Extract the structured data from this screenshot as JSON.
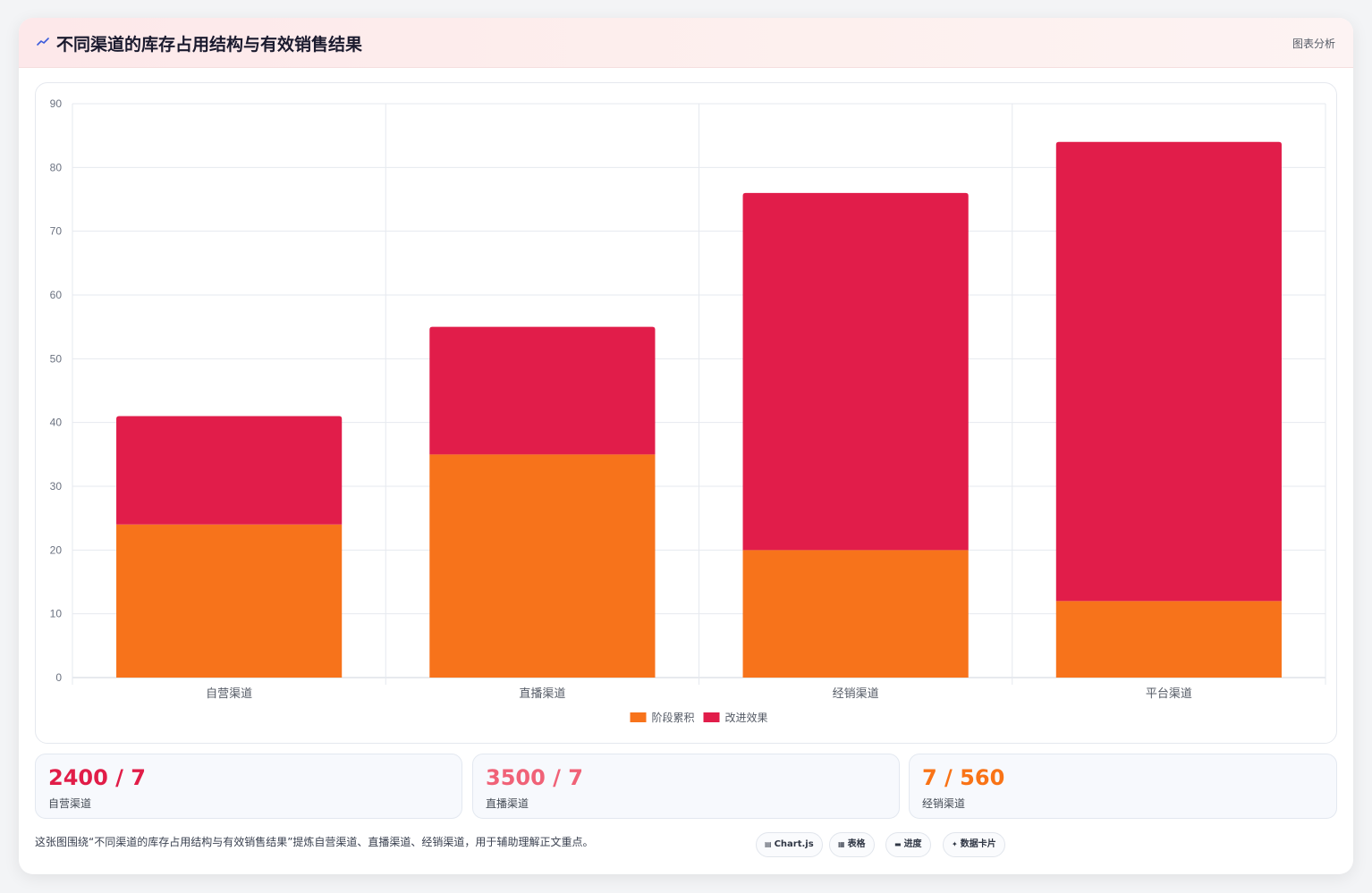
{
  "header": {
    "title": "不同渠道的库存占用结构与有效销售结果",
    "action_label": "图表分析"
  },
  "chart_data": {
    "type": "bar",
    "stacked": true,
    "categories": [
      "自营渠道",
      "直播渠道",
      "经销渠道",
      "平台渠道"
    ],
    "series": [
      {
        "name": "阶段累积",
        "values": [
          24,
          35,
          20,
          12
        ],
        "color": "#f7731b"
      },
      {
        "name": "改进效果",
        "values": [
          17,
          20,
          56,
          72
        ],
        "color": "#e11d4a"
      }
    ],
    "ylim": [
      0,
      90
    ],
    "yticks": [
      0,
      10,
      20,
      30,
      40,
      50,
      60,
      70,
      80,
      90
    ],
    "grid": true,
    "legend": "bottom"
  },
  "stats": [
    {
      "value": "2400 / 7",
      "label": "自营渠道",
      "color": "#e11d48"
    },
    {
      "value": "3500 / 7",
      "label": "直播渠道",
      "color": "#f06277"
    },
    {
      "value": "7 / 560",
      "label": "经销渠道",
      "color": "#f97316"
    }
  ],
  "footer": {
    "note": "这张图围绕“不同渠道的库存占用结构与有效销售结果”提炼自营渠道、直播渠道、经销渠道，用于辅助理解正文重点。",
    "chips": [
      {
        "icon": "chart-icon",
        "glyph": "▤",
        "label": "Chart.js"
      },
      {
        "icon": "table-icon",
        "glyph": "▦",
        "label": "表格"
      },
      {
        "icon": "progress-icon",
        "glyph": "▬",
        "label": "进度"
      },
      {
        "icon": "sparkle-icon",
        "glyph": "✦",
        "label": "数据卡片"
      }
    ]
  }
}
